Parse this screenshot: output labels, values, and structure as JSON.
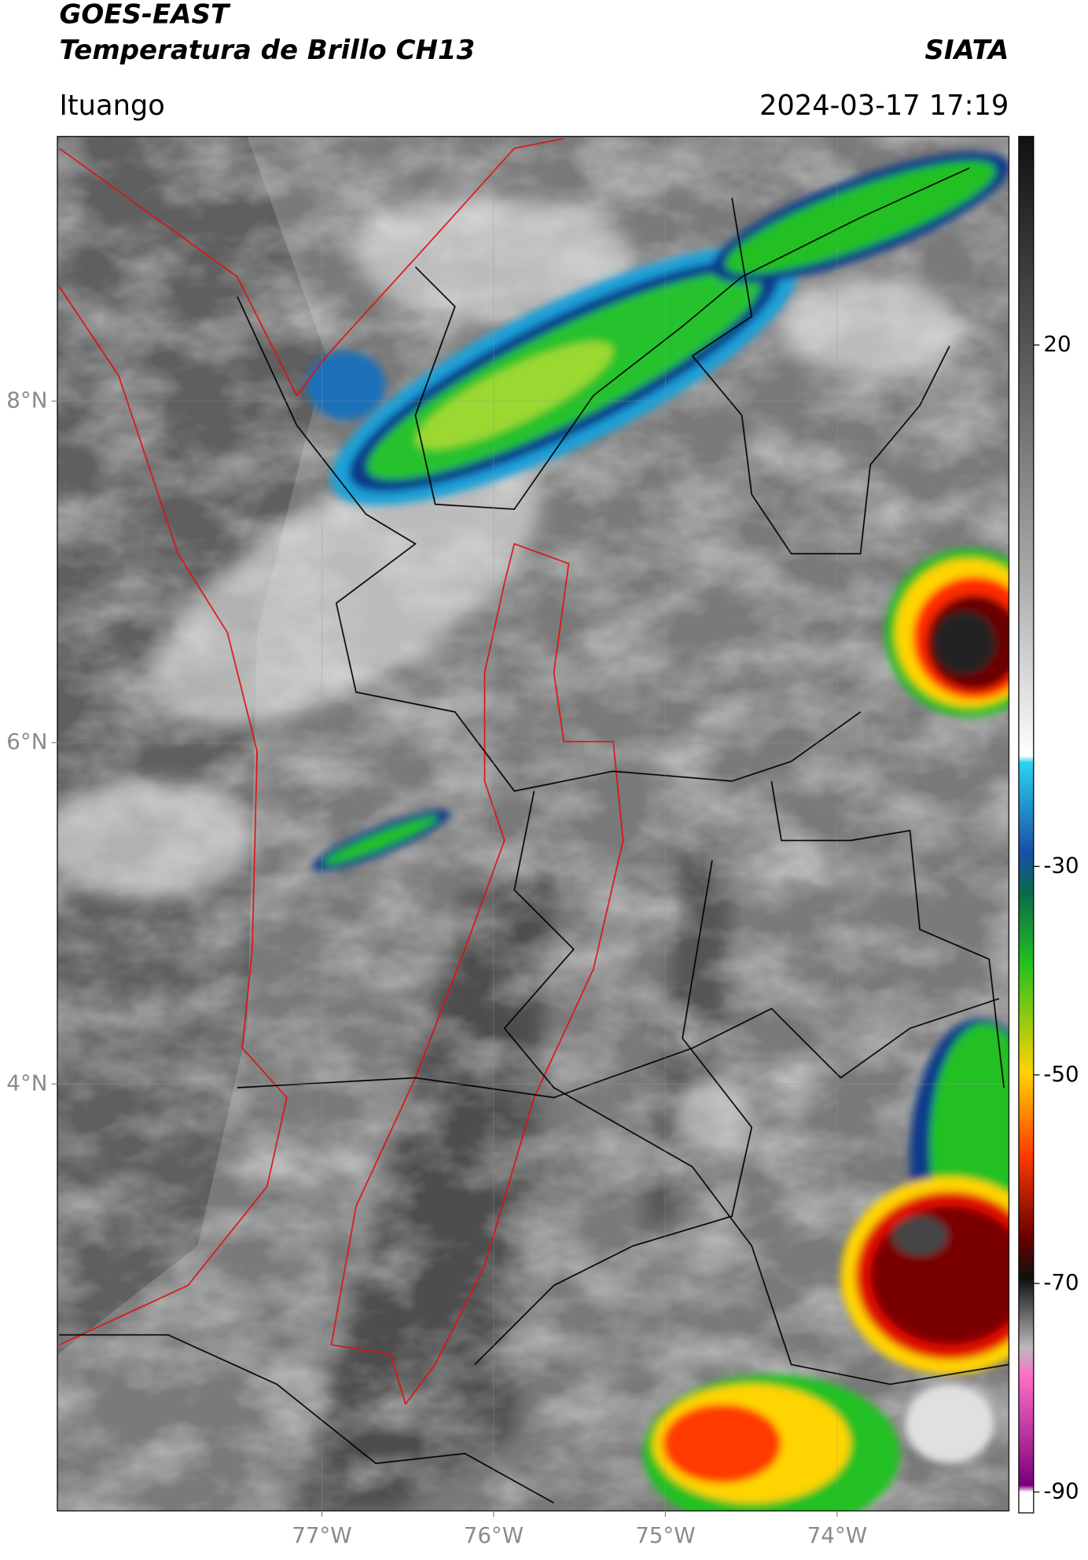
{
  "chart_data": {
    "type": "map",
    "title": "GOES-EAST",
    "subtitle": "Temperatura de Brillo CH13",
    "source": "SIATA",
    "location": "Ituango",
    "datetime": "2024-03-17 17:19",
    "xlim": [
      -78.54,
      -73.0
    ],
    "ylim": [
      1.5,
      9.55
    ],
    "xticks": [
      {
        "value": -77,
        "label": "77°W"
      },
      {
        "value": -76,
        "label": "76°W"
      },
      {
        "value": -75,
        "label": "75°W"
      },
      {
        "value": -74,
        "label": "74°W"
      }
    ],
    "yticks": [
      {
        "value": 8,
        "label": "8°N"
      },
      {
        "value": 6,
        "label": "6°N"
      },
      {
        "value": 4,
        "label": "4°N"
      }
    ],
    "grid": true,
    "colorbar_lim": [
      -92,
      40
    ],
    "colorbar_ticks": [
      20,
      -30,
      -50,
      -70,
      -90
    ]
  }
}
